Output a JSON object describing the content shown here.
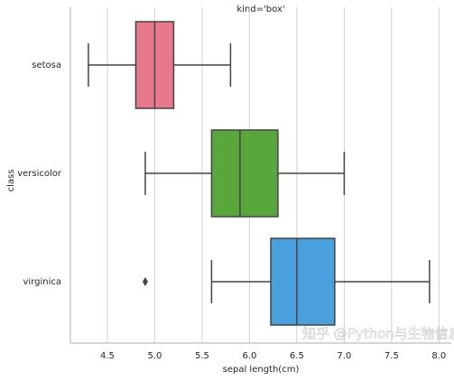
{
  "chart_data": {
    "type": "boxplot",
    "title": "kind='box'",
    "x_label": "sepal length(cm)",
    "y_label": "class",
    "orientation": "horizontal",
    "categories": [
      "setosa",
      "versicolor",
      "virginica"
    ],
    "colors": [
      "#e8788c",
      "#58a63c",
      "#4aa0dc"
    ],
    "boxes": [
      {
        "whislo": 4.3,
        "q1": 4.8,
        "med": 5.0,
        "q3": 5.2,
        "whishi": 5.8,
        "fliers": []
      },
      {
        "whislo": 4.9,
        "q1": 5.6,
        "med": 5.9,
        "q3": 6.3,
        "whishi": 7.0,
        "fliers": []
      },
      {
        "whislo": 5.6,
        "q1": 6.225,
        "med": 6.5,
        "q3": 6.9,
        "whishi": 7.9,
        "fliers": [
          4.9
        ]
      }
    ],
    "xlim": [
      4.11,
      8.13
    ],
    "xticks": [
      4.5,
      {
        "value": 5,
        "label": "5.0"
      },
      5.5,
      {
        "value": 6,
        "label": "6.0"
      },
      6.5,
      {
        "value": 7,
        "label": "7.0"
      },
      7.5,
      {
        "value": 8,
        "label": "8.0"
      }
    ],
    "grid": true,
    "watermark": "知乎 @Python与生物信息"
  }
}
